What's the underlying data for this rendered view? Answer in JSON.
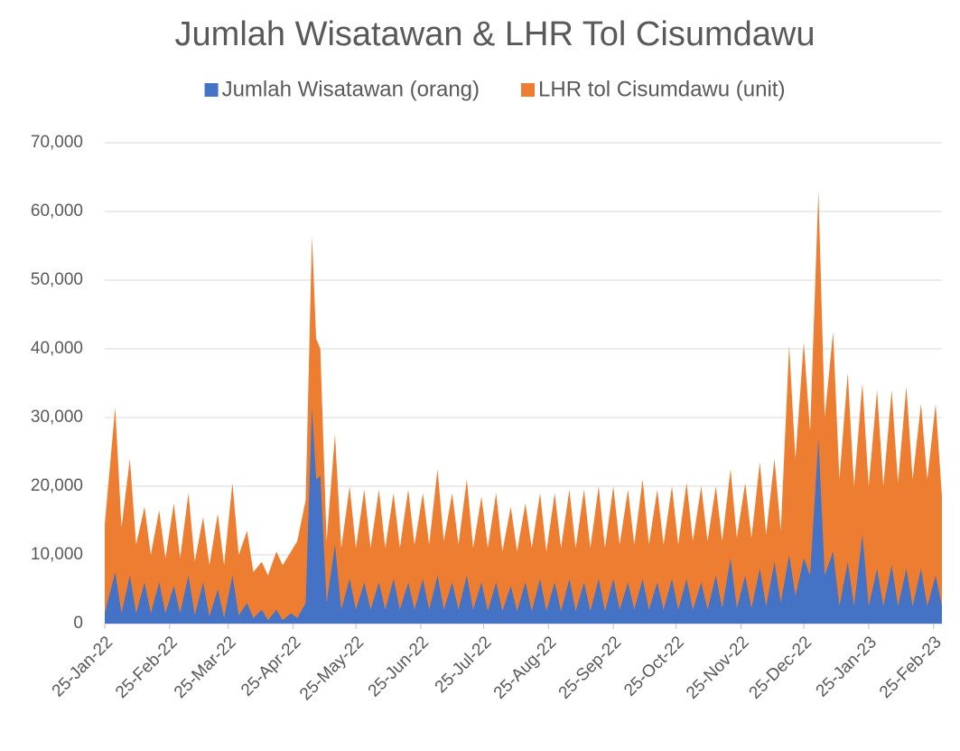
{
  "chart_data": {
    "type": "area",
    "title": "Jumlah Wisatawan & LHR Tol Cisumdawu",
    "x": [
      "25-Jan-22",
      "30-Jan-22",
      "2-Feb-22",
      "6-Feb-22",
      "9-Feb-22",
      "13-Feb-22",
      "16-Feb-22",
      "20-Feb-22",
      "23-Feb-22",
      "27-Feb-22",
      "2-Mar-22",
      "6-Mar-22",
      "9-Mar-22",
      "13-Mar-22",
      "16-Mar-22",
      "20-Mar-22",
      "23-Mar-22",
      "27-Mar-22",
      "30-Mar-22",
      "3-Apr-22",
      "6-Apr-22",
      "10-Apr-22",
      "13-Apr-22",
      "17-Apr-22",
      "20-Apr-22",
      "24-Apr-22",
      "27-Apr-22",
      "1-May-22",
      "4-May-22",
      "6-May-22",
      "8-May-22",
      "11-May-22",
      "15-May-22",
      "18-May-22",
      "22-May-22",
      "25-May-22",
      "29-May-22",
      "1-Jun-22",
      "5-Jun-22",
      "8-Jun-22",
      "12-Jun-22",
      "15-Jun-22",
      "19-Jun-22",
      "22-Jun-22",
      "26-Jun-22",
      "29-Jun-22",
      "3-Jul-22",
      "6-Jul-22",
      "10-Jul-22",
      "13-Jul-22",
      "17-Jul-22",
      "20-Jul-22",
      "24-Jul-22",
      "27-Jul-22",
      "31-Jul-22",
      "3-Aug-22",
      "7-Aug-22",
      "10-Aug-22",
      "14-Aug-22",
      "17-Aug-22",
      "21-Aug-22",
      "24-Aug-22",
      "28-Aug-22",
      "31-Aug-22",
      "4-Sep-22",
      "7-Sep-22",
      "11-Sep-22",
      "14-Sep-22",
      "18-Sep-22",
      "21-Sep-22",
      "25-Sep-22",
      "28-Sep-22",
      "2-Oct-22",
      "5-Oct-22",
      "9-Oct-22",
      "12-Oct-22",
      "16-Oct-22",
      "19-Oct-22",
      "23-Oct-22",
      "26-Oct-22",
      "30-Oct-22",
      "2-Nov-22",
      "6-Nov-22",
      "9-Nov-22",
      "13-Nov-22",
      "16-Nov-22",
      "20-Nov-22",
      "23-Nov-22",
      "27-Nov-22",
      "30-Nov-22",
      "4-Dec-22",
      "7-Dec-22",
      "11-Dec-22",
      "14-Dec-22",
      "18-Dec-22",
      "21-Dec-22",
      "25-Dec-22",
      "28-Dec-22",
      "1-Jan-23",
      "4-Jan-23",
      "8-Jan-23",
      "11-Jan-23",
      "15-Jan-23",
      "18-Jan-23",
      "22-Jan-23",
      "25-Jan-23",
      "29-Jan-23",
      "1-Feb-23",
      "5-Feb-23",
      "8-Feb-23",
      "12-Feb-23",
      "15-Feb-23",
      "19-Feb-23",
      "22-Feb-23",
      "26-Feb-23",
      "1-Mar-23"
    ],
    "series": [
      {
        "name": "Jumlah Wisatawan (orang)",
        "color": "#4472c4",
        "values": [
          1500,
          7500,
          1500,
          7000,
          1500,
          6000,
          1500,
          6000,
          1500,
          5500,
          1500,
          7000,
          1200,
          6000,
          1000,
          5000,
          800,
          7000,
          1200,
          3000,
          800,
          2000,
          500,
          2000,
          500,
          1500,
          800,
          3000,
          31500,
          21000,
          21500,
          3000,
          11500,
          2000,
          6500,
          2000,
          6000,
          2000,
          6000,
          2000,
          6500,
          2000,
          6000,
          2000,
          6500,
          2000,
          7000,
          2000,
          6000,
          2000,
          7000,
          2000,
          6000,
          1800,
          6000,
          1800,
          5500,
          1800,
          6000,
          1800,
          6500,
          1800,
          6000,
          1800,
          6500,
          1800,
          6000,
          1800,
          6500,
          1800,
          6500,
          2000,
          6000,
          2000,
          6500,
          2000,
          6000,
          2000,
          6500,
          2000,
          6500,
          2000,
          6000,
          2000,
          7000,
          2200,
          9500,
          2200,
          7000,
          2200,
          8000,
          2500,
          9000,
          3000,
          10000,
          4000,
          9500,
          7000,
          27000,
          7000,
          10500,
          2500,
          9000,
          2500,
          13000,
          2500,
          8000,
          2500,
          8500,
          2500,
          8000,
          2500,
          8000,
          2500,
          7000,
          2500
        ]
      },
      {
        "name": "LHR tol Cisumdawu (unit)",
        "color": "#ed7d31",
        "values": [
          14500,
          31500,
          14000,
          24000,
          11500,
          17000,
          10000,
          16500,
          9500,
          17500,
          9500,
          19000,
          9000,
          15500,
          8500,
          16000,
          8500,
          20500,
          10000,
          13500,
          7500,
          9000,
          7000,
          10500,
          8500,
          10500,
          12000,
          18000,
          56500,
          41500,
          40000,
          12000,
          27500,
          11000,
          20000,
          11000,
          19500,
          11000,
          19500,
          11000,
          19000,
          11000,
          19500,
          11500,
          19000,
          11500,
          22500,
          12000,
          19000,
          11500,
          21000,
          11000,
          18500,
          11000,
          19000,
          10500,
          17000,
          10500,
          17500,
          11000,
          19000,
          10500,
          19000,
          11000,
          19500,
          11000,
          19500,
          11000,
          20000,
          11000,
          20000,
          11500,
          19500,
          11500,
          21000,
          11500,
          19500,
          11500,
          20000,
          11500,
          20500,
          12000,
          20000,
          12000,
          20000,
          12000,
          22500,
          12500,
          20500,
          12500,
          23500,
          13000,
          24000,
          13500,
          40500,
          24000,
          41000,
          28000,
          63000,
          30000,
          42500,
          21000,
          36500,
          20000,
          35000,
          20000,
          34000,
          20000,
          34000,
          20500,
          34500,
          21000,
          32000,
          21000,
          32000,
          18500
        ]
      }
    ],
    "xlim": [
      "25-Jan-22",
      "1-Mar-23"
    ],
    "xticks": [
      "25-Jan-22",
      "25-Feb-22",
      "25-Mar-22",
      "25-Apr-22",
      "25-May-22",
      "25-Jun-22",
      "25-Jul-22",
      "25-Aug-22",
      "25-Sep-22",
      "25-Oct-22",
      "25-Nov-22",
      "25-Dec-22",
      "25-Jan-23",
      "25-Feb-23"
    ],
    "ylim": [
      0,
      70000
    ],
    "yticks": [
      0,
      {
        "value": 10000,
        "label": "10,000"
      },
      {
        "value": 20000,
        "label": "20,000"
      },
      {
        "value": 30000,
        "label": "30,000"
      },
      {
        "value": 40000,
        "label": "40,000"
      },
      {
        "value": 50000,
        "label": "50,000"
      },
      {
        "value": 60000,
        "label": "60,000"
      },
      {
        "value": 70000,
        "label": "70,000"
      }
    ],
    "grid": true,
    "legend": "top"
  }
}
